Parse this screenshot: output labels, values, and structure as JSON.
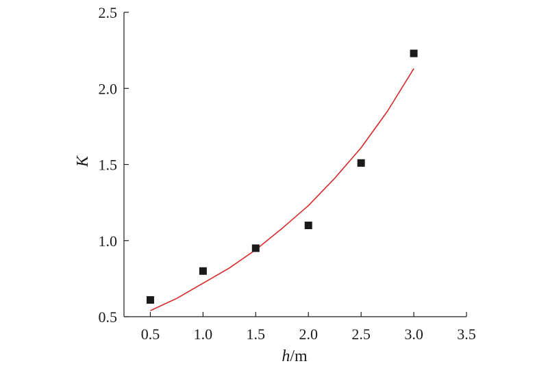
{
  "chart_data": {
    "type": "scatter",
    "xlabel": {
      "var": "h",
      "unit": "/m"
    },
    "ylabel": "K",
    "xlim": [
      0.25,
      3.5
    ],
    "ylim": [
      0.5,
      2.5
    ],
    "xticks": [
      0.5,
      1.0,
      1.5,
      2.0,
      2.5,
      3.0,
      3.5
    ],
    "yticks": [
      0.5,
      1.0,
      1.5,
      2.0,
      2.5
    ],
    "xtick_labels": [
      "0.5",
      "1.0",
      "1.5",
      "2.0",
      "2.5",
      "3.0",
      "3.5"
    ],
    "ytick_labels": [
      "0.5",
      "1.0",
      "1.5",
      "2.0",
      "2.5"
    ],
    "grid": false,
    "series": [
      {
        "type": "scatter",
        "marker": "square",
        "color": "#1a1a1a",
        "x": [
          0.5,
          1.0,
          1.5,
          2.0,
          2.5,
          3.0
        ],
        "y": [
          0.61,
          0.8,
          0.95,
          1.1,
          1.51,
          2.23
        ]
      },
      {
        "type": "line",
        "color": "#d62728",
        "x": [
          0.5,
          0.75,
          1.0,
          1.25,
          1.5,
          1.75,
          2.0,
          2.25,
          2.5,
          2.75,
          3.0
        ],
        "y": [
          0.54,
          0.62,
          0.72,
          0.82,
          0.94,
          1.08,
          1.23,
          1.41,
          1.61,
          1.85,
          2.13
        ]
      }
    ]
  }
}
